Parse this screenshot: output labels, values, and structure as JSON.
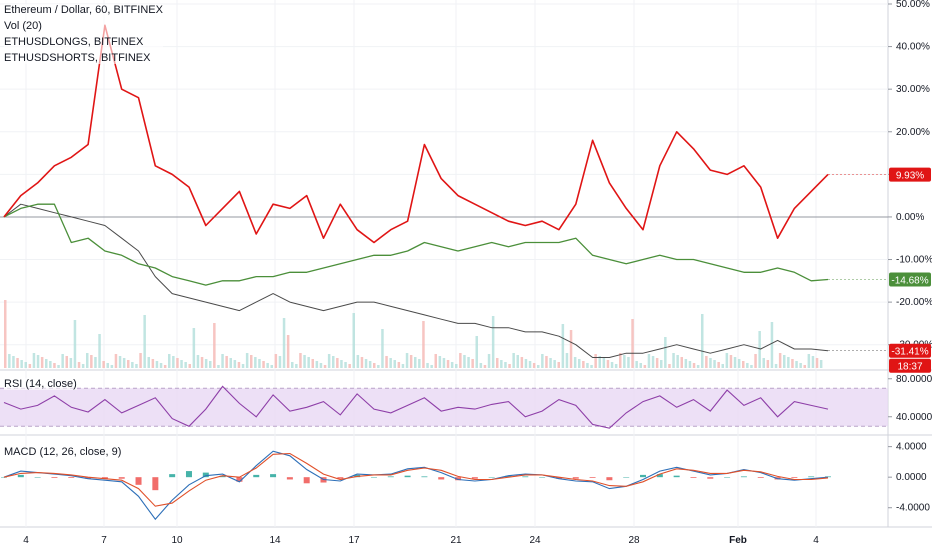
{
  "legends": {
    "main": [
      "Ethereum / Dollar, 60, BITFINEX",
      "Vol (20)",
      "ETHUSDLONGS, BITFINEX",
      "ETHUSDSHORTS, BITFINEX"
    ],
    "rsi": "RSI (14, close)",
    "macd": "MACD (12, 26, close, 9)"
  },
  "colors": {
    "price": "#4a4a4a",
    "longs": "#4b8f3a",
    "shorts": "#e01515",
    "rsi": "#8e3fa8",
    "rsi_band": "#e9d8f4",
    "macd": "#2d6fb8",
    "signal": "#e0502a",
    "hist_up": "#26a69a",
    "hist_down": "#ef5350"
  },
  "chart_data": [
    {
      "type": "line",
      "panel": "main",
      "y_unit": "percent change",
      "ylim": [
        -35,
        50
      ],
      "x_ticks": [
        "4",
        "7",
        "10",
        "14",
        "17",
        "21",
        "24",
        "28",
        "Feb",
        "4"
      ],
      "y_ticks": [
        "50.00%",
        "40.00%",
        "30.00%",
        "20.00%",
        "10.00%",
        "0.00%",
        "-10.00%",
        "-20.00%",
        "-30.00%"
      ],
      "price_labels": [
        "9.93%",
        "-14.68%",
        "-31.41%",
        "18:37"
      ],
      "series": [
        {
          "name": "ETHUSDSHORTS, BITFINEX",
          "values": [
            0,
            5,
            8,
            12,
            14,
            17,
            45,
            30,
            28,
            12,
            10,
            7,
            -2,
            2,
            6,
            -4,
            3,
            2,
            5,
            -5,
            3,
            -3,
            -6,
            -3,
            -1,
            17,
            9,
            5,
            3,
            1,
            -1,
            -2,
            -1,
            -3,
            3,
            18,
            8,
            2,
            -3,
            12,
            20,
            16,
            11,
            10,
            12,
            7,
            -5,
            2,
            6,
            10
          ]
        },
        {
          "name": "ETHUSDLONGS, BITFINEX",
          "values": [
            0,
            2,
            3,
            3,
            -6,
            -5,
            -8,
            -9,
            -11,
            -12,
            -14,
            -15,
            -16,
            -15,
            -15,
            -14,
            -14,
            -13,
            -13,
            -12,
            -11,
            -10,
            -9,
            -9,
            -8,
            -6,
            -7,
            -8,
            -7,
            -6,
            -7,
            -6,
            -6,
            -6,
            -5,
            -9,
            -10,
            -11,
            -10,
            -9,
            -10,
            -10,
            -11,
            -12,
            -13,
            -13,
            -12,
            -13,
            -15,
            -14.68
          ]
        },
        {
          "name": "Ethereum / Dollar, 60, BITFINEX",
          "values": [
            0,
            3,
            2,
            1,
            0,
            -1,
            -2,
            -5,
            -8,
            -14,
            -18,
            -19,
            -20,
            -21,
            -22,
            -20,
            -18,
            -20,
            -21,
            -22,
            -21,
            -20,
            -20,
            -21,
            -22,
            -23,
            -24,
            -25,
            -25,
            -26,
            -26,
            -27,
            -27,
            -28,
            -30,
            -33,
            -33,
            -32,
            -32,
            -31,
            -30,
            -31,
            -32,
            -31,
            -30,
            -31,
            -29,
            -31,
            -31,
            -31.41
          ]
        }
      ]
    },
    {
      "type": "line",
      "panel": "rsi",
      "title": "RSI (14, close)",
      "ylim": [
        25,
        85
      ],
      "y_ticks": [
        "80.0000",
        "40.0000"
      ],
      "band": [
        30,
        70
      ],
      "values": [
        55,
        48,
        52,
        62,
        50,
        45,
        58,
        44,
        52,
        60,
        38,
        30,
        48,
        72,
        54,
        40,
        63,
        46,
        50,
        56,
        42,
        64,
        48,
        44,
        52,
        60,
        46,
        50,
        48,
        53,
        56,
        40,
        46,
        58,
        52,
        32,
        28,
        44,
        56,
        62,
        50,
        58,
        46,
        68,
        52,
        60,
        40,
        56,
        52,
        48
      ]
    },
    {
      "type": "line",
      "panel": "macd",
      "title": "MACD (12, 26, close, 9)",
      "ylim": [
        -6,
        5
      ],
      "y_ticks": [
        "4.0000",
        "0.0000",
        "-4.0000"
      ],
      "series": [
        {
          "name": "MACD",
          "values": [
            0,
            0.8,
            0.6,
            0.4,
            0.2,
            -0.2,
            -0.4,
            -0.6,
            -2.5,
            -5.5,
            -3,
            -1,
            0.2,
            0.4,
            -0.6,
            1.5,
            3.4,
            2.8,
            1,
            -0.3,
            -0.5,
            0.4,
            0.3,
            0.4,
            1.1,
            1.3,
            0.6,
            -0.3,
            -0.5,
            -0.3,
            0.2,
            0.4,
            0.3,
            -0.2,
            -0.5,
            -0.6,
            -1.5,
            -1.2,
            -0.3,
            0.8,
            1.3,
            0.8,
            0.3,
            0.5,
            1,
            0.6,
            -0.2,
            -0.4,
            -0.2,
            0
          ]
        },
        {
          "name": "Signal",
          "values": [
            0,
            0.5,
            0.6,
            0.5,
            0.3,
            0,
            -0.2,
            -0.4,
            -1.5,
            -3.8,
            -3.4,
            -1.8,
            -0.4,
            0.2,
            0,
            1.2,
            3,
            3.1,
            1.8,
            0.4,
            -0.3,
            0.1,
            0.3,
            0.3,
            0.9,
            1.2,
            0.9,
            0.1,
            -0.3,
            -0.3,
            0,
            0.3,
            0.3,
            0,
            -0.3,
            -0.5,
            -1.1,
            -1.2,
            -0.6,
            0.4,
            1.1,
            0.9,
            0.5,
            0.5,
            0.9,
            0.7,
            0.1,
            -0.3,
            -0.3,
            -0.1
          ]
        }
      ]
    }
  ]
}
